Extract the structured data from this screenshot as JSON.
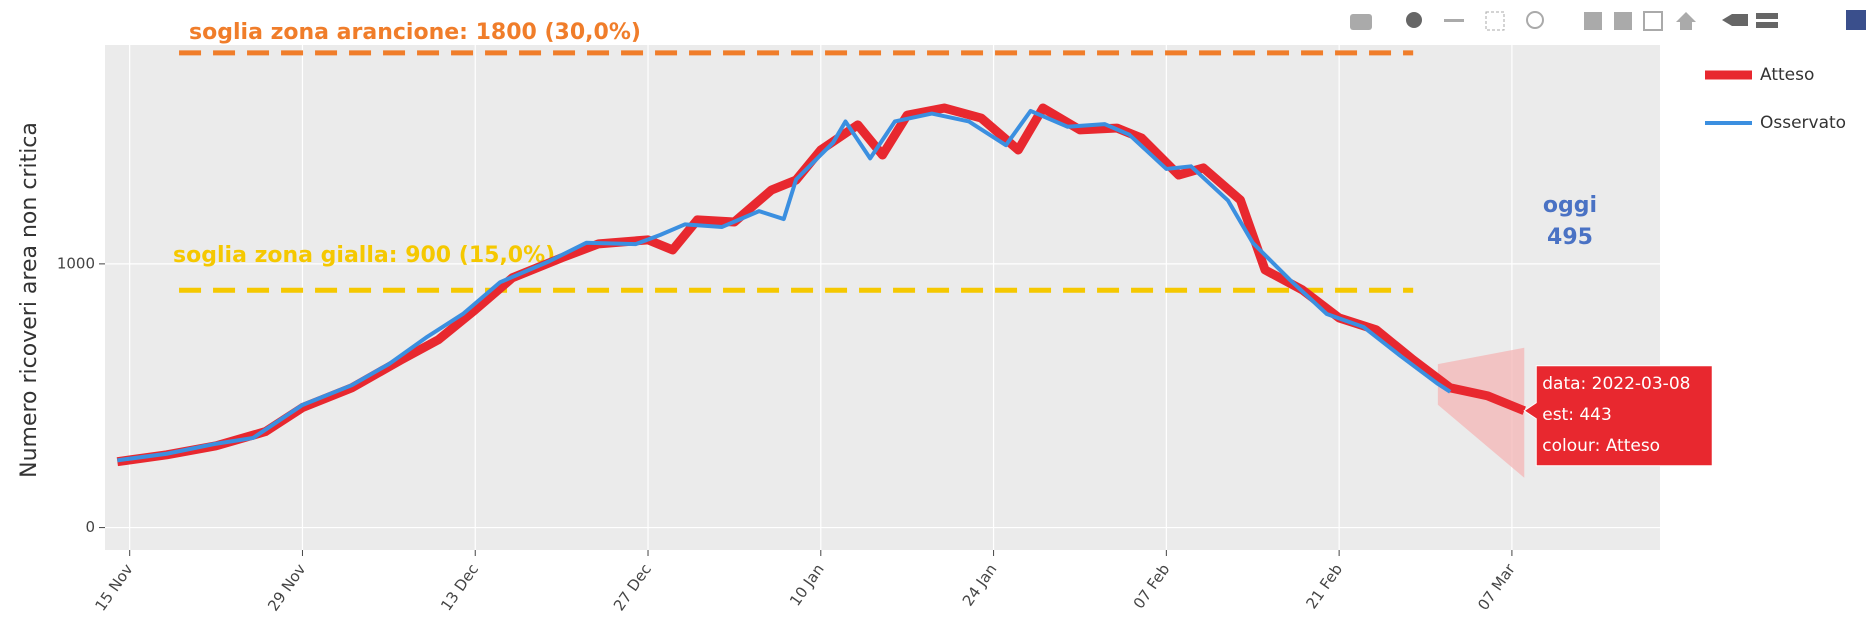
{
  "chart_data": {
    "type": "line",
    "y_label": "Numero ricoveri area non critica",
    "xlim": [
      "2021-11-13",
      "2022-03-19"
    ],
    "xticks": [
      {
        "value": "2021-11-15",
        "label": "15 Nov"
      },
      {
        "value": "2021-11-29",
        "label": "29 Nov"
      },
      {
        "value": "2021-12-13",
        "label": "13 Dec"
      },
      {
        "value": "2021-12-27",
        "label": "27 Dec"
      },
      {
        "value": "2022-01-10",
        "label": "10 Jan"
      },
      {
        "value": "2022-01-24",
        "label": "24 Jan"
      },
      {
        "value": "2022-02-07",
        "label": "07 Feb"
      },
      {
        "value": "2022-02-21",
        "label": "21 Feb"
      },
      {
        "value": "2022-03-07",
        "label": "07 Mar"
      }
    ],
    "ylim": [
      -85,
      1830
    ],
    "yticks": [
      0,
      1000
    ],
    "grid": true,
    "series": [
      {
        "name": "Atteso",
        "color": "#e8282f",
        "x": [
          "2021-11-14",
          "2021-11-18",
          "2021-11-22",
          "2021-11-26",
          "2021-11-29",
          "2021-12-03",
          "2021-12-07",
          "2021-12-10",
          "2021-12-13",
          "2021-12-16",
          "2021-12-20",
          "2021-12-23",
          "2021-12-27",
          "2021-12-29",
          "2021-12-31",
          "2022-01-03",
          "2022-01-06",
          "2022-01-08",
          "2022-01-10",
          "2022-01-13",
          "2022-01-15",
          "2022-01-17",
          "2022-01-20",
          "2022-01-23",
          "2022-01-26",
          "2022-01-28",
          "2022-01-31",
          "2022-02-03",
          "2022-02-05",
          "2022-02-08",
          "2022-02-10",
          "2022-02-13",
          "2022-02-15",
          "2022-02-18",
          "2022-02-21",
          "2022-02-24",
          "2022-02-27",
          "2022-03-02",
          "2022-03-05",
          "2022-03-08"
        ],
        "values": [
          250,
          276,
          310,
          364,
          455,
          530,
          636,
          712,
          826,
          947,
          1023,
          1076,
          1091,
          1053,
          1167,
          1159,
          1280,
          1318,
          1432,
          1527,
          1413,
          1564,
          1591,
          1553,
          1432,
          1591,
          1508,
          1515,
          1477,
          1337,
          1364,
          1242,
          977,
          902,
          795,
          750,
          636,
          530,
          500,
          443
        ]
      },
      {
        "name": "Osservato",
        "color": "#3b8fe0",
        "x": [
          "2021-11-14",
          "2021-11-18",
          "2021-11-22",
          "2021-11-25",
          "2021-11-29",
          "2021-12-03",
          "2021-12-06",
          "2021-12-09",
          "2021-12-12",
          "2021-12-15",
          "2021-12-19",
          "2021-12-22",
          "2021-12-26",
          "2021-12-28",
          "2021-12-30",
          "2022-01-02",
          "2022-01-05",
          "2022-01-07",
          "2022-01-08",
          "2022-01-11",
          "2022-01-12",
          "2022-01-14",
          "2022-01-16",
          "2022-01-19",
          "2022-01-22",
          "2022-01-25",
          "2022-01-27",
          "2022-01-30",
          "2022-02-02",
          "2022-02-04",
          "2022-02-07",
          "2022-02-09",
          "2022-02-12",
          "2022-02-14",
          "2022-02-17",
          "2022-02-20",
          "2022-02-23",
          "2022-02-26",
          "2022-03-01",
          "2022-03-02"
        ],
        "values": [
          255,
          280,
          318,
          340,
          465,
          540,
          620,
          720,
          810,
          930,
          1010,
          1080,
          1075,
          1110,
          1150,
          1140,
          1200,
          1170,
          1320,
          1460,
          1540,
          1400,
          1540,
          1570,
          1540,
          1450,
          1580,
          1520,
          1530,
          1490,
          1360,
          1370,
          1240,
          1080,
          940,
          810,
          760,
          650,
          545,
          515
        ]
      }
    ],
    "band": {
      "color": "#f4b5b5",
      "x": [
        "2022-03-01",
        "2022-03-08"
      ],
      "lower": [
        466,
        189
      ],
      "upper": [
        620,
        682
      ]
    },
    "thresholds": [
      {
        "label": "soglia zona arancione: 1800 (30,0%)",
        "value": 1800,
        "color": "#f07d2a",
        "x": [
          "2021-11-19",
          "2022-02-27"
        ]
      },
      {
        "label": "soglia zona gialla: 900 (15,0%)",
        "value": 900,
        "color": "#f5c800",
        "x": [
          "2021-11-19",
          "2022-02-27"
        ]
      }
    ],
    "today_label": "oggi",
    "today_value": 495,
    "hover": [
      "data: 2022-03-08",
      "est:  443",
      "colour: Atteso"
    ]
  }
}
